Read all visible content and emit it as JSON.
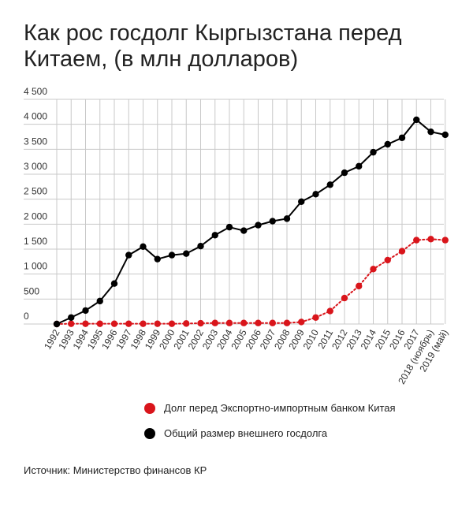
{
  "title": "Как рос госдолг Кыргызстана перед Китаем, (в  млн долларов)",
  "source": "Источник: Министерство финансов КР",
  "colors": {
    "china": "#d9151b",
    "total": "#000000",
    "grid": "#c8c8c8"
  },
  "chart_data": {
    "type": "line",
    "title": "Как рос госдолг Кыргызстана перед Китаем, (в  млн долларов)",
    "xlabel": "",
    "ylabel": "",
    "ylim": [
      0,
      4500
    ],
    "yticks": [
      0,
      500,
      1000,
      1500,
      2000,
      2500,
      3000,
      3500,
      4000,
      4500
    ],
    "ytick_labels": [
      "0",
      "500",
      "1 000",
      "1 500",
      "2 000",
      "2 500",
      "3 000",
      "3 500",
      "4 000",
      "4 500"
    ],
    "grid": true,
    "legend_position": "bottom",
    "categories": [
      "1992",
      "1993",
      "1994",
      "1995",
      "1996",
      "1997",
      "1998",
      "1999",
      "2000",
      "2001",
      "2002",
      "2003",
      "2004",
      "2005",
      "2006",
      "2007",
      "2008",
      "2009",
      "2010",
      "2011",
      "2012",
      "2013",
      "2014",
      "2015",
      "2016",
      "2017",
      "2018 (ноябрь)",
      "2019 (май)"
    ],
    "series": [
      {
        "name": "Долг перед Экспортно-импортным банком Китая",
        "color": "#d9151b",
        "style": "dotted",
        "values": [
          0,
          5,
          5,
          5,
          5,
          5,
          5,
          5,
          5,
          10,
          15,
          20,
          20,
          20,
          20,
          20,
          20,
          40,
          130,
          260,
          520,
          760,
          1100,
          1280,
          1460,
          1680,
          1700,
          1680
        ]
      },
      {
        "name": "Общий размер внешнего госдолга",
        "color": "#000000",
        "style": "solid",
        "values": [
          0,
          130,
          270,
          460,
          810,
          1380,
          1550,
          1300,
          1380,
          1410,
          1560,
          1780,
          1940,
          1870,
          1980,
          2060,
          2110,
          2450,
          2600,
          2790,
          3030,
          3160,
          3440,
          3600,
          3730,
          4090,
          3850,
          3790
        ]
      }
    ]
  }
}
